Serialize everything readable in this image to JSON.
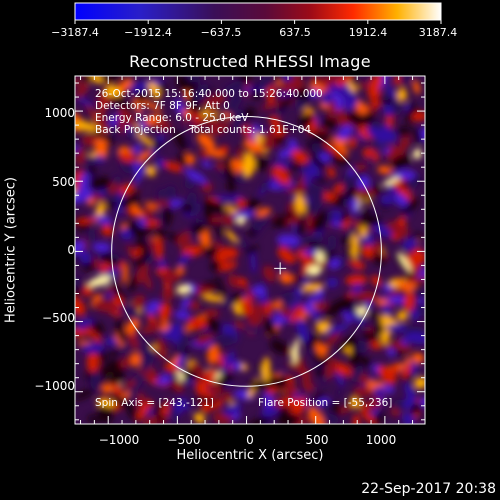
{
  "colorbar": {
    "labels": [
      "−3187.4",
      "−1912.4",
      "−637.5",
      "637.5",
      "1912.4",
      "3187.4"
    ],
    "values": [
      -3187.4,
      -1912.4,
      -637.5,
      637.5,
      1912.4,
      3187.4
    ],
    "range": [
      -3187.4,
      3187.4
    ],
    "colors": [
      "#0000ff",
      "#3a1aa8",
      "#3c0a3c",
      "#7a0a2a",
      "#ff3b00",
      "#ffa800",
      "#ffffff"
    ]
  },
  "title": "Reconstructed RHESSI Image",
  "info": {
    "line1": "26-Oct-2015 15:16:40.000 to 15:26:40.000",
    "line2": "Detectors: 7F 8F 9F, Att 0",
    "line3": "Energy Range: 6.0 - 25.0 keV",
    "line4": "Back Projection    Total counts: 1.61E+04"
  },
  "footer": {
    "spin_axis": "Spin Axis = [243,-121]",
    "flare_position": "Flare Position = [-55,236]"
  },
  "axes": {
    "xlabel": "Heliocentric X (arcsec)",
    "ylabel": "Heliocentric Y (arcsec)",
    "x_ticks": [
      "−1000",
      "−500",
      "0",
      "500",
      "1000"
    ],
    "y_ticks": [
      "1000",
      "500",
      "0",
      "−500",
      "−1000"
    ],
    "x_tick_values": [
      -1000,
      -500,
      0,
      500,
      1000
    ],
    "y_tick_values": [
      1000,
      500,
      0,
      -500,
      -1000
    ],
    "xlim": [
      -1240,
      1290
    ],
    "ylim": [
      -1230,
      1250
    ]
  },
  "solar_disk": {
    "center": [
      0,
      0
    ],
    "radius_arcsec": 975
  },
  "spin_axis_marker": {
    "x": 243,
    "y": -121
  },
  "timestamp": "22-Sep-2017 20:38"
}
